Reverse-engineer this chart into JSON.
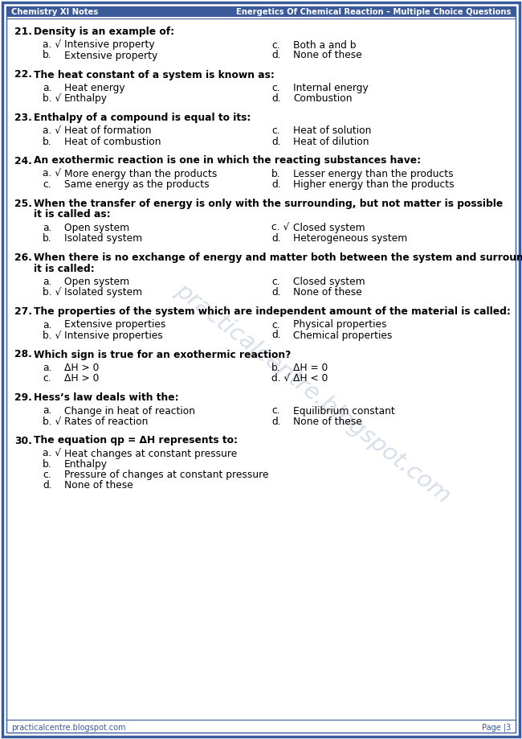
{
  "header_left": "Chemistry XI Notes",
  "header_right": "Energetics Of Chemical Reaction – Multiple Choice Questions",
  "footer_left": "practicalcentre.blogspot.com",
  "footer_right": "Page |3",
  "watermark": "practicalcentre.blogspot.com",
  "border_color": "#3a5a9a",
  "text_color": "#000000",
  "bg_color": "#ffffff",
  "questions": [
    {
      "num": "21.",
      "question": "Density is an example of:",
      "two_col": true,
      "options": [
        {
          "label": "a. √",
          "text": "Intensive property",
          "col": 0
        },
        {
          "label": "b.",
          "text": "Extensive property",
          "col": 0
        },
        {
          "label": "c.",
          "text": "Both a and b",
          "col": 1
        },
        {
          "label": "d.",
          "text": "None of these",
          "col": 1
        }
      ]
    },
    {
      "num": "22.",
      "question": "The heat constant of a system is known as:",
      "two_col": true,
      "options": [
        {
          "label": "a.",
          "text": "Heat energy",
          "col": 0
        },
        {
          "label": "b. √",
          "text": "Enthalpy",
          "col": 0
        },
        {
          "label": "c.",
          "text": "Internal energy",
          "col": 1
        },
        {
          "label": "d.",
          "text": "Combustion",
          "col": 1
        }
      ]
    },
    {
      "num": "23.",
      "question": "Enthalpy of a compound is equal to its:",
      "two_col": true,
      "options": [
        {
          "label": "a. √",
          "text": "Heat of formation",
          "col": 0
        },
        {
          "label": "b.",
          "text": "Heat of combustion",
          "col": 0
        },
        {
          "label": "c.",
          "text": "Heat of solution",
          "col": 1
        },
        {
          "label": "d.",
          "text": "Heat of dilution",
          "col": 1
        }
      ]
    },
    {
      "num": "24.",
      "question": "An exothermic reaction is one in which the reacting substances have:",
      "two_col": true,
      "options": [
        {
          "label": "a. √",
          "text": "More energy than the products",
          "col": 0
        },
        {
          "label": "b.",
          "text": "Lesser energy than the products",
          "col": 1
        },
        {
          "label": "c.",
          "text": "Same energy as the products",
          "col": 0
        },
        {
          "label": "d.",
          "text": "Higher energy than the products",
          "col": 1
        }
      ]
    },
    {
      "num": "25.",
      "question": "When the transfer of energy is only with the surrounding, but not matter is possible it is called as:",
      "two_col": true,
      "options": [
        {
          "label": "a.",
          "text": "Open system",
          "col": 0
        },
        {
          "label": "b.",
          "text": "Isolated system",
          "col": 0
        },
        {
          "label": "c. √",
          "text": "Closed system",
          "col": 1
        },
        {
          "label": "d.",
          "text": "Heterogeneous system",
          "col": 1
        }
      ]
    },
    {
      "num": "26.",
      "question": "When there is no exchange of energy and matter both between the system and surrounding it is called:",
      "two_col": true,
      "options": [
        {
          "label": "a.",
          "text": "Open system",
          "col": 0
        },
        {
          "label": "b. √",
          "text": "Isolated system",
          "col": 0
        },
        {
          "label": "c.",
          "text": "Closed system",
          "col": 1
        },
        {
          "label": "d.",
          "text": "None of these",
          "col": 1
        }
      ]
    },
    {
      "num": "27.",
      "question": "The properties of the system which are independent amount of the material is called:",
      "two_col": true,
      "options": [
        {
          "label": "a.",
          "text": "Extensive properties",
          "col": 0
        },
        {
          "label": "b. √",
          "text": "Intensive properties",
          "col": 0
        },
        {
          "label": "c.",
          "text": "Physical properties",
          "col": 1
        },
        {
          "label": "d.",
          "text": "Chemical properties",
          "col": 1
        }
      ]
    },
    {
      "num": "28.",
      "question": "Which sign is true for an exothermic reaction?",
      "two_col": true,
      "options": [
        {
          "label": "a.",
          "text": "ΔH > 0",
          "col": 0
        },
        {
          "label": "b.",
          "text": "ΔH = 0",
          "col": 1
        },
        {
          "label": "c.",
          "text": "ΔH > 0",
          "col": 0
        },
        {
          "label": "d. √",
          "text": "ΔH < 0",
          "col": 1
        }
      ]
    },
    {
      "num": "29.",
      "question": "Hess’s law deals with the:",
      "two_col": true,
      "options": [
        {
          "label": "a.",
          "text": "Change in heat of reaction",
          "col": 0
        },
        {
          "label": "b. √",
          "text": "Rates of reaction",
          "col": 0
        },
        {
          "label": "c.",
          "text": "Equilibrium constant",
          "col": 1
        },
        {
          "label": "d.",
          "text": "None of these",
          "col": 1
        }
      ]
    },
    {
      "num": "30.",
      "question": "The equation qp = ΔH represents to:",
      "two_col": false,
      "options": [
        {
          "label": "a. √",
          "text": "Heat changes at constant pressure",
          "col": 0
        },
        {
          "label": "b.",
          "text": "Enthalpy",
          "col": 0
        },
        {
          "label": "c.",
          "text": "Pressure of changes at constant pressure",
          "col": 0
        },
        {
          "label": "d.",
          "text": "None of these",
          "col": 0
        }
      ]
    }
  ],
  "q_wrap": {
    "25": "When the transfer of energy is only with the surrounding, but not matter is possible it is\ncalled as:",
    "26": "When there is no exchange of energy and matter both between the system and\nsurrounding it is called:"
  }
}
